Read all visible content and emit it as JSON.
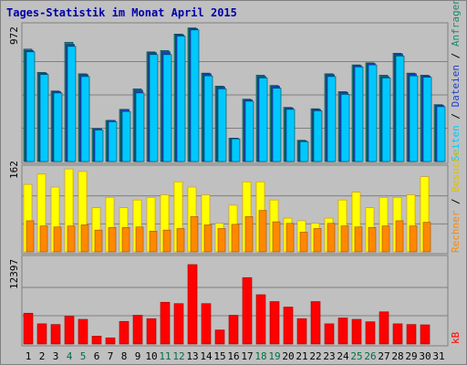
{
  "title": "Tages-Statistik im Monat April 2015",
  "days": [
    "1",
    "2",
    "3",
    "4",
    "5",
    "6",
    "7",
    "8",
    "9",
    "10",
    "11",
    "12",
    "13",
    "14",
    "15",
    "16",
    "17",
    "18",
    "19",
    "20",
    "21",
    "22",
    "23",
    "24",
    "25",
    "26",
    "27",
    "28",
    "29",
    "30",
    "31"
  ],
  "weekend_days": [
    "4",
    "5",
    "11",
    "12",
    "18",
    "19",
    "25",
    "26"
  ],
  "colors": {
    "weekday_label": "#000000",
    "weekend_label": "#007040",
    "hits": "#1b8a6b",
    "files": "#1e3fcc",
    "pages": "#00c8ff",
    "visits": "#ffff00",
    "visits_outline": "#d09000",
    "sites": "#ff8800",
    "kbytes": "#ff0000",
    "kbytes_outline": "#a00000",
    "label_anfragen": "#1b8a6b",
    "label_dateien": "#1e3fcc",
    "label_seiten": "#00c8ff",
    "label_besuche": "#e0c000",
    "label_rechner": "#ff8800",
    "label_kb": "#ff0000",
    "grid": "#808080"
  },
  "chart_data": [
    {
      "type": "bar",
      "panel": "top",
      "ymax_label": "972",
      "ylim": [
        0,
        972
      ],
      "grid": true,
      "legend": [
        "Anfragen",
        "Dateien",
        "Seiten"
      ],
      "categories": [
        "1",
        "2",
        "3",
        "4",
        "5",
        "6",
        "7",
        "8",
        "9",
        "10",
        "11",
        "12",
        "13",
        "14",
        "15",
        "16",
        "17",
        "18",
        "19",
        "20",
        "21",
        "22",
        "23",
        "24",
        "25",
        "26",
        "27",
        "28",
        "29",
        "30",
        "31"
      ],
      "series": [
        {
          "name": "Anfragen",
          "values": [
            820,
            650,
            515,
            870,
            640,
            240,
            300,
            380,
            530,
            800,
            810,
            930,
            975,
            645,
            550,
            170,
            455,
            630,
            555,
            395,
            155,
            385,
            640,
            510,
            705,
            720,
            630,
            790,
            645,
            630,
            415
          ]
        },
        {
          "name": "Dateien",
          "values": [
            810,
            645,
            510,
            855,
            635,
            240,
            300,
            380,
            520,
            795,
            800,
            925,
            970,
            640,
            545,
            170,
            450,
            620,
            550,
            390,
            150,
            380,
            635,
            505,
            700,
            715,
            620,
            785,
            640,
            625,
            410
          ]
        },
        {
          "name": "Seiten",
          "values": [
            800,
            635,
            500,
            840,
            620,
            230,
            290,
            365,
            500,
            780,
            780,
            915,
            960,
            625,
            530,
            165,
            440,
            610,
            535,
            380,
            145,
            370,
            620,
            490,
            690,
            705,
            610,
            770,
            625,
            615,
            400
          ]
        }
      ]
    },
    {
      "type": "bar",
      "panel": "middle",
      "ymax_label": "162",
      "ylim": [
        0,
        162
      ],
      "grid": true,
      "legend": [
        "Besuche",
        "Rechner"
      ],
      "categories": [
        "1",
        "2",
        "3",
        "4",
        "5",
        "6",
        "7",
        "8",
        "9",
        "10",
        "11",
        "12",
        "13",
        "14",
        "15",
        "16",
        "17",
        "18",
        "19",
        "20",
        "21",
        "22",
        "23",
        "24",
        "25",
        "26",
        "27",
        "28",
        "29",
        "30",
        "31"
      ],
      "series": [
        {
          "name": "Besuche",
          "values": [
            130,
            150,
            125,
            160,
            155,
            85,
            105,
            85,
            100,
            105,
            110,
            135,
            125,
            110,
            55,
            90,
            135,
            135,
            100,
            65,
            60,
            55,
            65,
            100,
            115,
            85,
            105,
            105,
            110,
            145,
            0
          ]
        },
        {
          "name": "Rechner",
          "values": [
            60,
            50,
            48,
            50,
            52,
            42,
            47,
            47,
            48,
            40,
            42,
            45,
            68,
            52,
            45,
            53,
            68,
            80,
            58,
            55,
            38,
            45,
            55,
            50,
            48,
            47,
            50,
            60,
            50,
            57,
            0
          ]
        }
      ]
    },
    {
      "type": "bar",
      "panel": "bottom",
      "ymax_label": "12397",
      "ylim": [
        0,
        12397
      ],
      "grid": true,
      "legend": [
        "kB"
      ],
      "categories": [
        "1",
        "2",
        "3",
        "4",
        "5",
        "6",
        "7",
        "8",
        "9",
        "10",
        "11",
        "12",
        "13",
        "14",
        "15",
        "16",
        "17",
        "18",
        "19",
        "20",
        "21",
        "22",
        "23",
        "24",
        "25",
        "26",
        "27",
        "28",
        "29",
        "30",
        "31"
      ],
      "series": [
        {
          "name": "kB",
          "values": [
            4500,
            2950,
            2850,
            4050,
            3600,
            1150,
            900,
            3300,
            4200,
            3700,
            6100,
            5900,
            11600,
            5900,
            2050,
            4200,
            9700,
            7200,
            6200,
            5400,
            3700,
            6200,
            2950,
            3800,
            3600,
            3250,
            4700,
            2950,
            2850,
            2800,
            0
          ]
        }
      ]
    }
  ]
}
